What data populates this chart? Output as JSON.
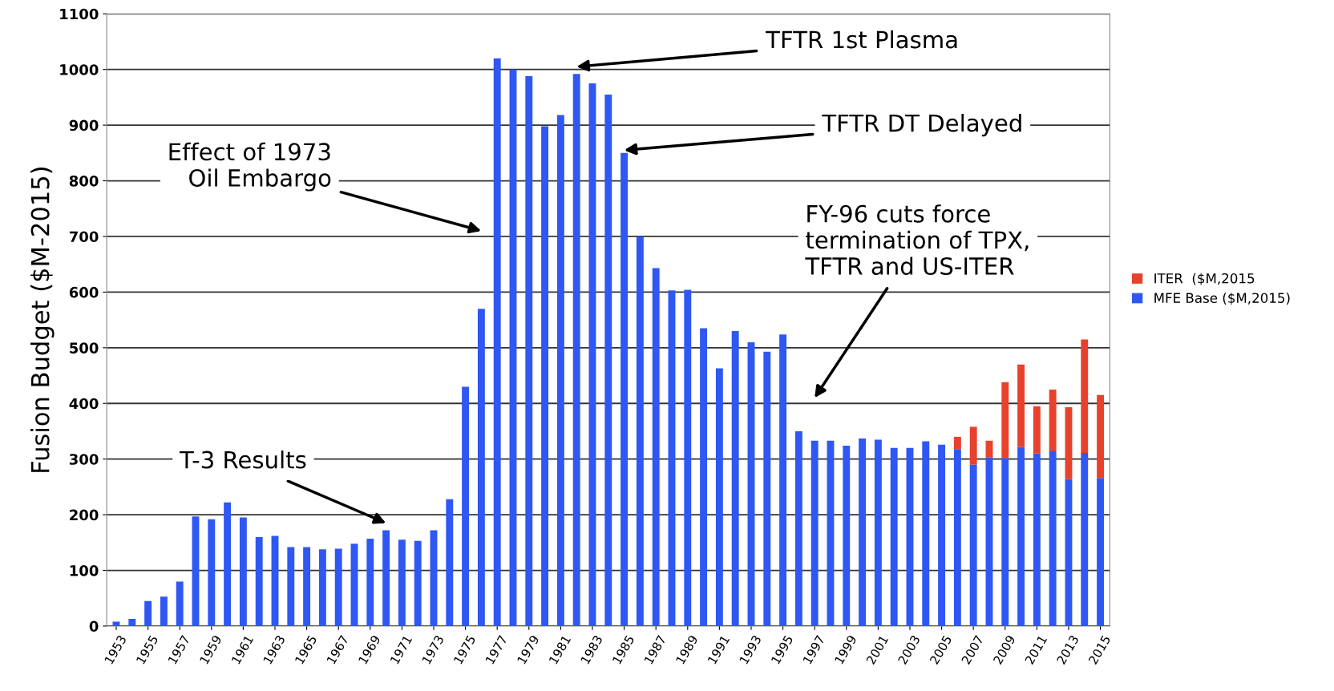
{
  "chart_data": {
    "type": "bar",
    "stacked": true,
    "ylabel": "Fusion Budget ($M-2015)",
    "x": [
      1953,
      1954,
      1955,
      1956,
      1957,
      1958,
      1959,
      1960,
      1961,
      1962,
      1963,
      1964,
      1965,
      1966,
      1967,
      1968,
      1969,
      1970,
      1971,
      1972,
      1973,
      1974,
      1975,
      1976,
      1977,
      1978,
      1979,
      1980,
      1981,
      1982,
      1983,
      1984,
      1985,
      1986,
      1987,
      1988,
      1989,
      1990,
      1991,
      1992,
      1993,
      1994,
      1995,
      1996,
      1997,
      1998,
      1999,
      2000,
      2001,
      2002,
      2003,
      2004,
      2005,
      2006,
      2007,
      2008,
      2009,
      2010,
      2011,
      2012,
      2013,
      2014,
      2015
    ],
    "xlim": [
      1952.4,
      2015.6
    ],
    "xticks": [
      1953,
      1955,
      1957,
      1959,
      1961,
      1963,
      1965,
      1967,
      1969,
      1971,
      1973,
      1975,
      1977,
      1979,
      1981,
      1983,
      1985,
      1987,
      1989,
      1991,
      1993,
      1995,
      1997,
      1999,
      2001,
      2003,
      2005,
      2007,
      2009,
      2011,
      2013,
      2015
    ],
    "ylim": [
      0,
      1100
    ],
    "yticks": [
      0,
      100,
      200,
      300,
      400,
      500,
      600,
      700,
      800,
      900,
      1000,
      1100
    ],
    "grid": "y",
    "legend": "right",
    "series": [
      {
        "name": "MFE Base ($M,2015)",
        "color": "#2f57f4",
        "values": [
          8,
          13,
          45,
          53,
          80,
          197,
          192,
          222,
          195,
          160,
          162,
          142,
          142,
          138,
          139,
          148,
          157,
          172,
          155,
          153,
          172,
          228,
          430,
          570,
          1020,
          1000,
          988,
          898,
          918,
          992,
          975,
          955,
          850,
          700,
          643,
          603,
          604,
          535,
          463,
          530,
          510,
          493,
          524,
          350,
          333,
          333,
          324,
          337,
          335,
          320,
          320,
          332,
          326,
          318,
          290,
          303,
          302,
          322,
          310,
          314,
          264,
          311,
          266
        ]
      },
      {
        "name": "ITER  ($M,2015",
        "color": "#e8412c",
        "values": [
          null,
          null,
          null,
          null,
          null,
          null,
          null,
          null,
          null,
          null,
          null,
          null,
          null,
          null,
          null,
          null,
          null,
          null,
          null,
          null,
          null,
          null,
          null,
          null,
          null,
          null,
          null,
          null,
          null,
          null,
          null,
          null,
          null,
          null,
          null,
          null,
          null,
          null,
          null,
          null,
          null,
          null,
          null,
          null,
          null,
          null,
          null,
          null,
          null,
          null,
          null,
          null,
          null,
          22,
          68,
          30,
          136,
          148,
          85,
          111,
          129,
          204,
          149
        ]
      }
    ],
    "annotations": [
      "TFTR 1st Plasma",
      {
        "text": "TFTR DT Delayed",
        "x": 1985,
        "y": 850
      },
      "Effect of 1973\nOil Embargo",
      "FY-96 cuts force\ntermination of TPX,\nTFTR and US-ITER",
      "T-3 Results"
    ]
  }
}
